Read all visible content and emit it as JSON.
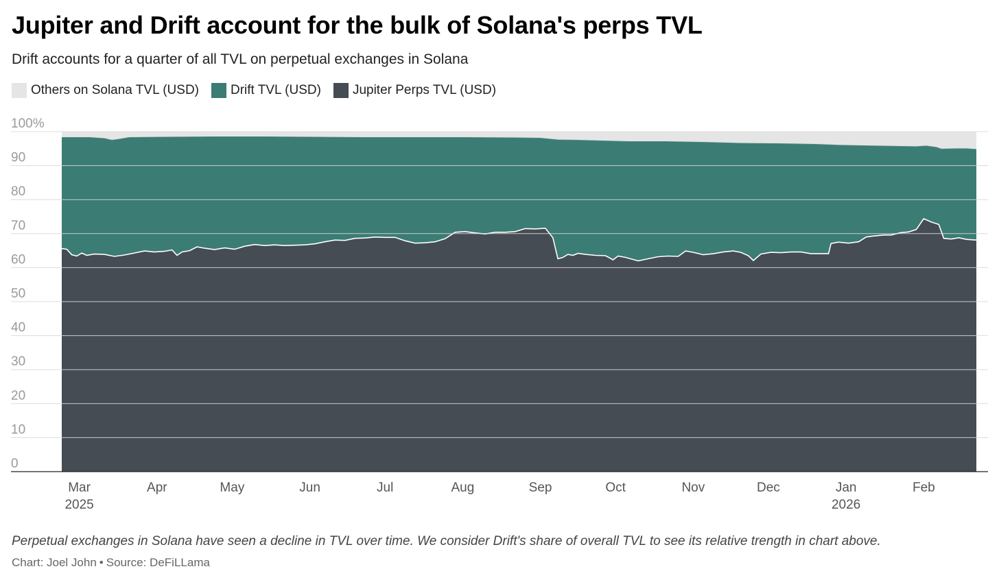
{
  "title": "Jupiter and Drift account for the bulk of Solana's perps TVL",
  "subtitle": "Drift accounts for a quarter of all TVL on perpetual exchanges in Solana",
  "legend": [
    {
      "label": "Others on Solana TVL (USD)",
      "color": "#e5e5e5"
    },
    {
      "label": "Drift TVL (USD)",
      "color": "#3b7c74"
    },
    {
      "label": "Jupiter Perps TVL (USD)",
      "color": "#454c54"
    }
  ],
  "footnote": "Perpetual exchanges in Solana have seen a decline in TVL over time. We consider Drift's share of overall TVL to see its relative trength in chart above.",
  "credit": {
    "author": "Chart: Joel John",
    "separator": "•",
    "source": "Source: DeFiLLama"
  },
  "chart_data": {
    "type": "area",
    "stacked": true,
    "normalized": "percent",
    "title": "Jupiter and Drift account for the bulk of Solana's perps TVL",
    "ylabel": "",
    "ylim": [
      0,
      100
    ],
    "y_ticks": [
      "0",
      "10",
      "20",
      "30",
      "40",
      "50",
      "60",
      "70",
      "80",
      "90",
      "100%"
    ],
    "x_ticks": [
      {
        "label": "Mar",
        "sub": "2025",
        "day": 3
      },
      {
        "label": "Apr",
        "sub": "",
        "day": 34
      },
      {
        "label": "May",
        "sub": "",
        "day": 64
      },
      {
        "label": "Jun",
        "sub": "",
        "day": 95
      },
      {
        "label": "Jul",
        "sub": "",
        "day": 125
      },
      {
        "label": "Aug",
        "sub": "",
        "day": 156
      },
      {
        "label": "Sep",
        "sub": "",
        "day": 187
      },
      {
        "label": "Oct",
        "sub": "",
        "day": 217
      },
      {
        "label": "Nov",
        "sub": "",
        "day": 248
      },
      {
        "label": "Dec",
        "sub": "",
        "day": 278
      },
      {
        "label": "Jan",
        "sub": "2026",
        "day": 309
      },
      {
        "label": "Feb",
        "sub": "",
        "day": 340
      }
    ],
    "x_range_days": [
      -1,
      364
    ],
    "x_note": "days since 2025-03-01",
    "jupiter_share": [
      [
        -1,
        65.6
      ],
      [
        1,
        65.4
      ],
      [
        3,
        63.8
      ],
      [
        5,
        63.4
      ],
      [
        7,
        64.3
      ],
      [
        9,
        63.6
      ],
      [
        12,
        64.0
      ],
      [
        16,
        63.9
      ],
      [
        20,
        63.3
      ],
      [
        24,
        63.7
      ],
      [
        28,
        64.3
      ],
      [
        32,
        64.9
      ],
      [
        36,
        64.6
      ],
      [
        40,
        64.8
      ],
      [
        43,
        65.2
      ],
      [
        45,
        63.6
      ],
      [
        47,
        64.6
      ],
      [
        50,
        65.0
      ],
      [
        53,
        66.1
      ],
      [
        56,
        65.7
      ],
      [
        60,
        65.3
      ],
      [
        64,
        65.8
      ],
      [
        68,
        65.4
      ],
      [
        72,
        66.3
      ],
      [
        76,
        66.8
      ],
      [
        80,
        66.5
      ],
      [
        84,
        66.7
      ],
      [
        88,
        66.5
      ],
      [
        92,
        66.6
      ],
      [
        96,
        66.7
      ],
      [
        100,
        67.0
      ],
      [
        104,
        67.6
      ],
      [
        108,
        68.1
      ],
      [
        112,
        68.0
      ],
      [
        116,
        68.6
      ],
      [
        120,
        68.7
      ],
      [
        124,
        69.0
      ],
      [
        128,
        68.9
      ],
      [
        132,
        68.9
      ],
      [
        136,
        67.9
      ],
      [
        140,
        67.2
      ],
      [
        144,
        67.3
      ],
      [
        148,
        67.6
      ],
      [
        152,
        68.5
      ],
      [
        156,
        70.4
      ],
      [
        160,
        70.6
      ],
      [
        164,
        70.2
      ],
      [
        168,
        69.9
      ],
      [
        172,
        70.4
      ],
      [
        176,
        70.4
      ],
      [
        180,
        70.6
      ],
      [
        184,
        71.5
      ],
      [
        188,
        71.4
      ],
      [
        192,
        71.6
      ],
      [
        195,
        68.8
      ],
      [
        197,
        62.6
      ],
      [
        199,
        63.0
      ],
      [
        201,
        63.9
      ],
      [
        203,
        63.6
      ],
      [
        205,
        64.2
      ],
      [
        208,
        63.9
      ],
      [
        212,
        63.6
      ],
      [
        216,
        63.5
      ],
      [
        219,
        62.3
      ],
      [
        221,
        63.4
      ],
      [
        224,
        63.0
      ],
      [
        227,
        62.4
      ],
      [
        229,
        62.0
      ],
      [
        233,
        62.6
      ],
      [
        237,
        63.2
      ],
      [
        241,
        63.4
      ],
      [
        245,
        63.3
      ],
      [
        248,
        64.9
      ],
      [
        251,
        64.5
      ],
      [
        255,
        63.8
      ],
      [
        259,
        64.1
      ],
      [
        263,
        64.6
      ],
      [
        267,
        64.9
      ],
      [
        270,
        64.5
      ],
      [
        273,
        63.5
      ],
      [
        275,
        62.1
      ],
      [
        278,
        64.0
      ],
      [
        282,
        64.5
      ],
      [
        286,
        64.4
      ],
      [
        290,
        64.6
      ],
      [
        294,
        64.6
      ],
      [
        298,
        64.1
      ],
      [
        302,
        64.1
      ],
      [
        305,
        64.1
      ],
      [
        306,
        67.1
      ],
      [
        309,
        67.5
      ],
      [
        313,
        67.2
      ],
      [
        317,
        67.6
      ],
      [
        320,
        69.0
      ],
      [
        323,
        69.3
      ],
      [
        327,
        69.6
      ],
      [
        330,
        69.6
      ],
      [
        334,
        70.3
      ],
      [
        337,
        70.5
      ],
      [
        340,
        71.2
      ],
      [
        343,
        74.4
      ],
      [
        346,
        73.4
      ],
      [
        349,
        72.7
      ],
      [
        351,
        68.6
      ],
      [
        354,
        68.4
      ],
      [
        357,
        68.8
      ],
      [
        360,
        68.3
      ],
      [
        364,
        68.1
      ]
    ],
    "jupiter_plus_drift_share": [
      [
        -1,
        98.3
      ],
      [
        5,
        98.3
      ],
      [
        10,
        98.3
      ],
      [
        16,
        98.0
      ],
      [
        19,
        97.5
      ],
      [
        22,
        97.8
      ],
      [
        26,
        98.3
      ],
      [
        40,
        98.4
      ],
      [
        60,
        98.5
      ],
      [
        80,
        98.5
      ],
      [
        100,
        98.4
      ],
      [
        120,
        98.3
      ],
      [
        140,
        98.3
      ],
      [
        160,
        98.3
      ],
      [
        180,
        98.2
      ],
      [
        190,
        98.1
      ],
      [
        197,
        97.6
      ],
      [
        205,
        97.5
      ],
      [
        215,
        97.3
      ],
      [
        225,
        97.1
      ],
      [
        240,
        97.1
      ],
      [
        255,
        96.9
      ],
      [
        270,
        96.6
      ],
      [
        285,
        96.5
      ],
      [
        300,
        96.3
      ],
      [
        310,
        96.0
      ],
      [
        325,
        95.8
      ],
      [
        340,
        95.6
      ],
      [
        344,
        95.8
      ],
      [
        348,
        95.4
      ],
      [
        350,
        94.9
      ],
      [
        356,
        95.0
      ],
      [
        360,
        95.0
      ],
      [
        364,
        94.8
      ]
    ]
  }
}
